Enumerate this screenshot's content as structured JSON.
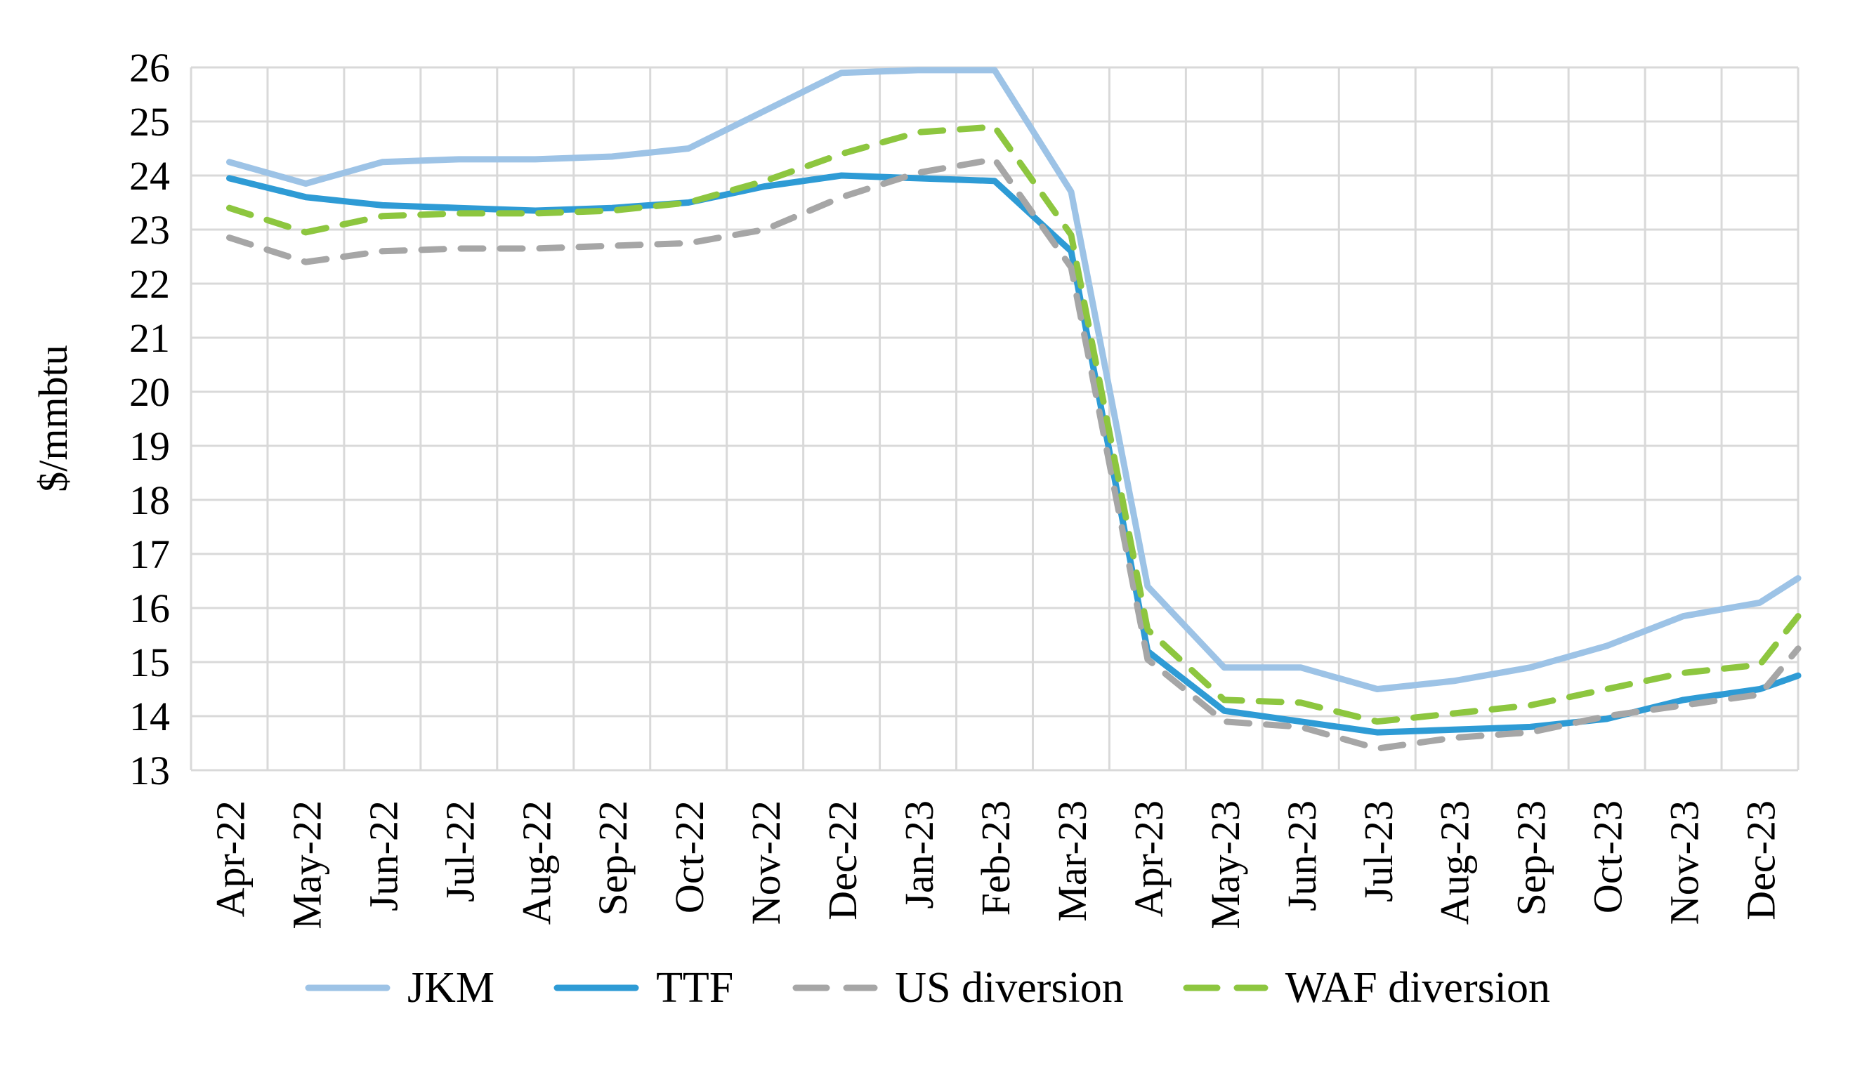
{
  "chart_data": {
    "type": "line",
    "title": "",
    "ylabel": "$/mmbtu",
    "ylim": [
      13,
      26
    ],
    "yticks": [
      26,
      25,
      24,
      23,
      22,
      21,
      20,
      19,
      18,
      17,
      16,
      15,
      14,
      13
    ],
    "grid": true,
    "grid_color": "#d9d9d9",
    "legend_position": "bottom",
    "categories": [
      "Apr-22",
      "May-22",
      "Jun-22",
      "Jul-22",
      "Aug-22",
      "Sep-22",
      "Oct-22",
      "Nov-22",
      "Dec-22",
      "Jan-23",
      "Feb-23",
      "Mar-23",
      "Apr-23",
      "May-23",
      "Jun-23",
      "Jul-23",
      "Aug-23",
      "Sep-23",
      "Oct-23",
      "Nov-23",
      "Dec-23"
    ],
    "series": [
      {
        "name": "JKM",
        "color": "#9dc3e6",
        "dashed": false,
        "values": [
          24.25,
          23.85,
          24.25,
          24.3,
          24.3,
          24.35,
          24.5,
          25.2,
          25.9,
          25.95,
          25.95,
          23.7,
          16.4,
          14.9,
          14.9,
          14.5,
          14.65,
          14.9,
          15.3,
          15.85,
          16.1
        ],
        "end_value": 16.55
      },
      {
        "name": "TTF",
        "color": "#2e9bd5",
        "dashed": false,
        "values": [
          23.95,
          23.6,
          23.45,
          23.4,
          23.35,
          23.4,
          23.5,
          23.8,
          24.0,
          23.95,
          23.9,
          22.6,
          15.2,
          14.1,
          13.9,
          13.7,
          13.75,
          13.8,
          13.95,
          14.3,
          14.5
        ],
        "end_value": 14.75
      },
      {
        "name": "US diversion",
        "color": "#a6a6a6",
        "dashed": true,
        "values": [
          22.85,
          22.4,
          22.6,
          22.65,
          22.65,
          22.7,
          22.75,
          23.0,
          23.6,
          24.05,
          24.3,
          22.3,
          15.05,
          13.9,
          13.8,
          13.4,
          13.6,
          13.7,
          14.0,
          14.2,
          14.4
        ],
        "end_value": 15.25
      },
      {
        "name": "WAF diversion",
        "color": "#8dc63f",
        "dashed": true,
        "values": [
          23.4,
          22.95,
          23.25,
          23.3,
          23.3,
          23.35,
          23.5,
          23.9,
          24.4,
          24.8,
          24.9,
          22.9,
          15.6,
          14.3,
          14.25,
          13.9,
          14.05,
          14.2,
          14.5,
          14.8,
          14.95
        ],
        "end_value": 15.85
      }
    ]
  }
}
